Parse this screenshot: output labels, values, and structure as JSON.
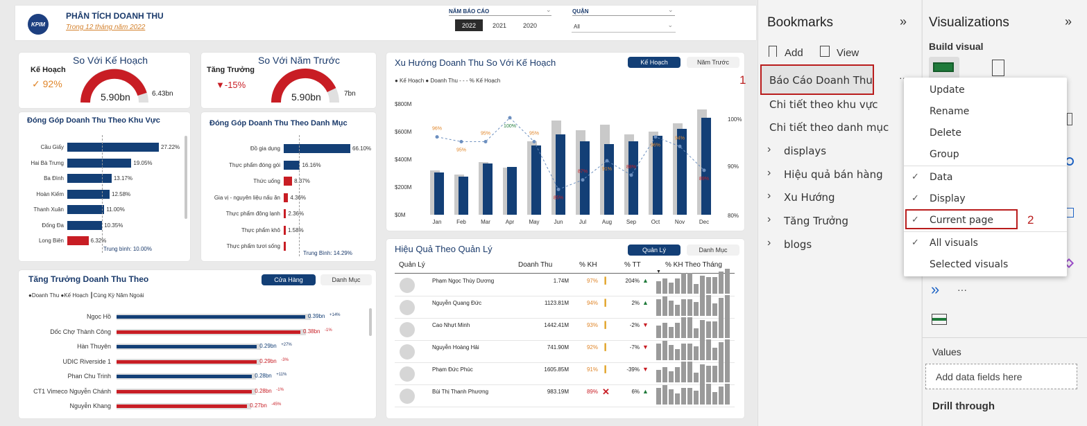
{
  "header": {
    "title": "PHÂN TÍCH DOANH THU",
    "subtitle": "Trong 12 tháng năm 2022",
    "logo_text": "KPIM",
    "year_label": "NĂM BÁO CÁO",
    "years": [
      "2022",
      "2021",
      "2020"
    ],
    "district_label": "QUẬN",
    "district_value": "All"
  },
  "gauge_plan": {
    "title": "So Với Kế Hoạch",
    "label": "Kế Hoạch",
    "pct": "✓ 92%",
    "value": "5.90bn",
    "target": "6.43bn"
  },
  "gauge_prev": {
    "title": "So Với Năm Trước",
    "label": "Tăng Trưởng",
    "pct": "▼-15%",
    "value": "5.90bn",
    "target": "7bn"
  },
  "region": {
    "title": "Đóng Góp Doanh Thu Theo Khu Vực",
    "avg": "Trung bình: 10.00%",
    "rows": [
      {
        "name": "Cầu Giấy",
        "label": "27.22%",
        "v": 27.22,
        "c": "navy"
      },
      {
        "name": "Hai Bà Trưng",
        "label": "19.05%",
        "v": 19.05,
        "c": "navy"
      },
      {
        "name": "Ba Đình",
        "label": "13.17%",
        "v": 13.17,
        "c": "navy"
      },
      {
        "name": "Hoàn Kiếm",
        "label": "12.58%",
        "v": 12.58,
        "c": "navy"
      },
      {
        "name": "Thanh Xuân",
        "label": "11.00%",
        "v": 11.0,
        "c": "navy"
      },
      {
        "name": "Đống Đa",
        "label": "10.35%",
        "v": 10.35,
        "c": "navy"
      },
      {
        "name": "Long Biên",
        "label": "6.32%",
        "v": 6.32,
        "c": "red"
      }
    ]
  },
  "category": {
    "title": "Đóng Góp Doanh Thu Theo Danh Mục",
    "avg": "Trung Bình: 14.29%",
    "rows": [
      {
        "name": "Đồ gia dụng",
        "label": "66.10%",
        "v": 66.1,
        "c": "navy"
      },
      {
        "name": "Thực phẩm đóng gói",
        "label": "16.16%",
        "v": 16.16,
        "c": "navy"
      },
      {
        "name": "Thức uống",
        "label": "8.37%",
        "v": 8.37,
        "c": "red"
      },
      {
        "name": "Gia vị - nguyên liệu nấu ăn",
        "label": "4.36%",
        "v": 4.36,
        "c": "red"
      },
      {
        "name": "Thực phẩm đông lạnh",
        "label": "2.36%",
        "v": 2.36,
        "c": "red"
      },
      {
        "name": "Thực phẩm khô",
        "label": "1.58%",
        "v": 1.58,
        "c": "red"
      },
      {
        "name": "Thực phẩm tươi sống",
        "label": "",
        "v": 0.3,
        "c": "red"
      }
    ]
  },
  "growth": {
    "title": "Tăng Trưởng Doanh Thu Theo",
    "tab_on": "Cửa Hàng",
    "tab_off": "Danh Mục",
    "legend": "●Doanh Thu ●Kế Hoạch ┃Cùng Kỳ Năm Ngoái",
    "rows": [
      {
        "name": "Ngọc Hồ",
        "label": "0.39bn",
        "pct": "+14%",
        "v": 0.39,
        "c": "navy"
      },
      {
        "name": "Dốc Chợ Thành Công",
        "label": "0.38bn",
        "pct": "-1%",
        "v": 0.38,
        "c": "red"
      },
      {
        "name": "Hàn Thuyên",
        "label": "0.29bn",
        "pct": "+27%",
        "v": 0.29,
        "c": "navy"
      },
      {
        "name": "UDIC Riverside 1",
        "label": "0.29bn",
        "pct": "-3%",
        "v": 0.29,
        "c": "red"
      },
      {
        "name": "Phan Chu Trinh",
        "label": "0.28bn",
        "pct": "+11%",
        "v": 0.28,
        "c": "navy"
      },
      {
        "name": "CT1 Vimeco Nguyễn Chánh",
        "label": "0.28bn",
        "pct": "-1%",
        "v": 0.28,
        "c": "red"
      },
      {
        "name": "Nguyễn Khang",
        "label": "0.27bn",
        "pct": "-45%",
        "v": 0.27,
        "c": "red"
      }
    ]
  },
  "trend": {
    "title": "Xu Hướng Doanh Thu So Với Kế Hoạch",
    "tab_on": "Kế Hoạch",
    "tab_off": "Năm Trước",
    "legend": "● Kế Hoạch ● Doanh Thu - - - % Kế Hoạch"
  },
  "chart_data": {
    "type": "bar",
    "categories": [
      "Jan",
      "Feb",
      "Mar",
      "Apr",
      "May",
      "Jun",
      "Jul",
      "Aug",
      "Sep",
      "Oct",
      "Nov",
      "Dec"
    ],
    "series": [
      {
        "name": "Kế Hoạch",
        "values": [
          320,
          290,
          380,
          340,
          530,
          680,
          610,
          650,
          580,
          600,
          660,
          760
        ]
      },
      {
        "name": "Doanh Thu",
        "values": [
          305,
          275,
          370,
          345,
          500,
          580,
          530,
          510,
          530,
          570,
          620,
          700
        ]
      },
      {
        "name": "% Kế Hoạch",
        "values": [
          96,
          95,
          95,
          100,
          95,
          85,
          87,
          91,
          88,
          96,
          94,
          89
        ]
      }
    ],
    "pct_labels": [
      "96%",
      "95%",
      "95%",
      "100%",
      "95%",
      "85%",
      "87%",
      "91%",
      "88%",
      "96%",
      "94%",
      "89%"
    ],
    "ylim": [
      0,
      800
    ],
    "y_ticks": [
      "$800M",
      "$600M",
      "$400M",
      "$200M",
      "$0M"
    ],
    "y2_ticks": [
      "100%",
      "90%",
      "80%"
    ]
  },
  "mgmt": {
    "title": "Hiệu Quả Theo Quản Lý",
    "tab_on": "Quản Lý",
    "tab_off": "Danh Mục",
    "headers": [
      "Quản Lý",
      "Doanh Thu",
      "% KH",
      "% TT",
      "% KH Theo Tháng"
    ],
    "rows": [
      {
        "name": "Phạm Ngọc Thùy Dương",
        "rev": "1.74M",
        "kh": "97%",
        "tt": "204%",
        "up": true
      },
      {
        "name": "Nguyễn Quang Đức",
        "rev": "1123.81M",
        "kh": "94%",
        "tt": "2%",
        "up": true
      },
      {
        "name": "Cao Nhựt Minh",
        "rev": "1442.41M",
        "kh": "93%",
        "tt": "-2%",
        "up": false
      },
      {
        "name": "Nguyễn Hoàng Hải",
        "rev": "741.90M",
        "kh": "92%",
        "tt": "-7%",
        "up": false
      },
      {
        "name": "Phạm Đức Phúc",
        "rev": "1605.85M",
        "kh": "91%",
        "tt": "-39%",
        "up": false
      },
      {
        "name": "Bùi Thị Thanh Phương",
        "rev": "983.19M",
        "kh": "89%",
        "tt": "6%",
        "up": true
      }
    ]
  },
  "bookmarks": {
    "title": "Bookmarks",
    "add": "Add",
    "view": "View",
    "selected": "Báo Cáo Doanh Thu",
    "items": [
      "Chi tiết theo khu vực",
      "Chi tiết theo danh mục"
    ],
    "groups": [
      "displays",
      "Hiệu quả bán hàng",
      "Xu Hướng",
      "Tăng Trưởng",
      "blogs"
    ],
    "marker1": "1"
  },
  "context_menu": {
    "items": [
      "Update",
      "Rename",
      "Delete",
      "Group"
    ],
    "checks": [
      "Data",
      "Display",
      "Current page",
      "All visuals"
    ],
    "last": "Selected visuals",
    "marker2": "2"
  },
  "visualizations": {
    "title": "Visualizations",
    "build": "Build visual",
    "values": "Values",
    "add_fields": "Add data fields here",
    "drill": "Drill through",
    "more": "···"
  }
}
